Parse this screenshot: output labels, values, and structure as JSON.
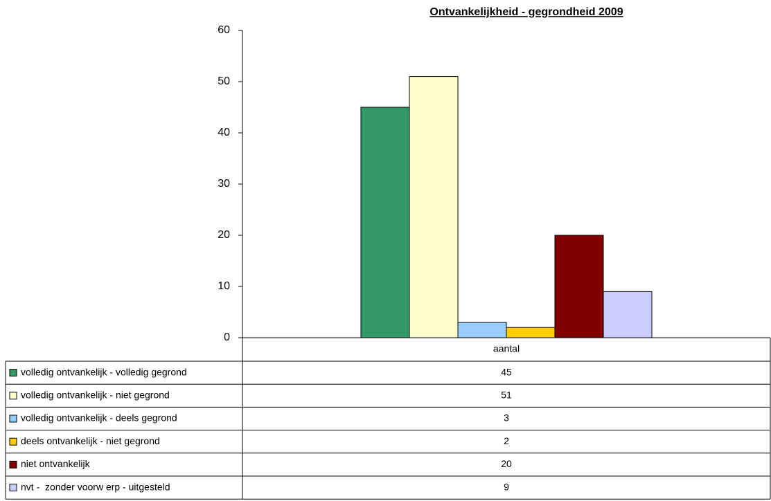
{
  "chart_data": {
    "type": "bar",
    "title": "Ontvankelijkheid - gegrondheid 2009",
    "categories": [
      "aantal"
    ],
    "series": [
      {
        "name": "volledig ontvankelijk - volledig gegrond",
        "color": "#339966",
        "values": [
          45
        ]
      },
      {
        "name": "volledig ontvankelijk - niet gegrond",
        "color": "#ffffcc",
        "values": [
          51
        ]
      },
      {
        "name": "volledig ontvankelijk - deels gegrond",
        "color": "#99ccff",
        "values": [
          3
        ]
      },
      {
        "name": "deels ontvankelijk - niet gegrond",
        "color": "#ffcc00",
        "values": [
          2
        ]
      },
      {
        "name": "niet ontvankelijk",
        "color": "#800000",
        "values": [
          20
        ]
      },
      {
        "name": "nvt -  zonder voorw erp - uitgesteld",
        "color": "#ccccff",
        "values": [
          9
        ]
      }
    ],
    "ylim": [
      0,
      60
    ],
    "yticks": [
      0,
      10,
      20,
      30,
      40,
      50,
      60
    ],
    "grid": false
  }
}
